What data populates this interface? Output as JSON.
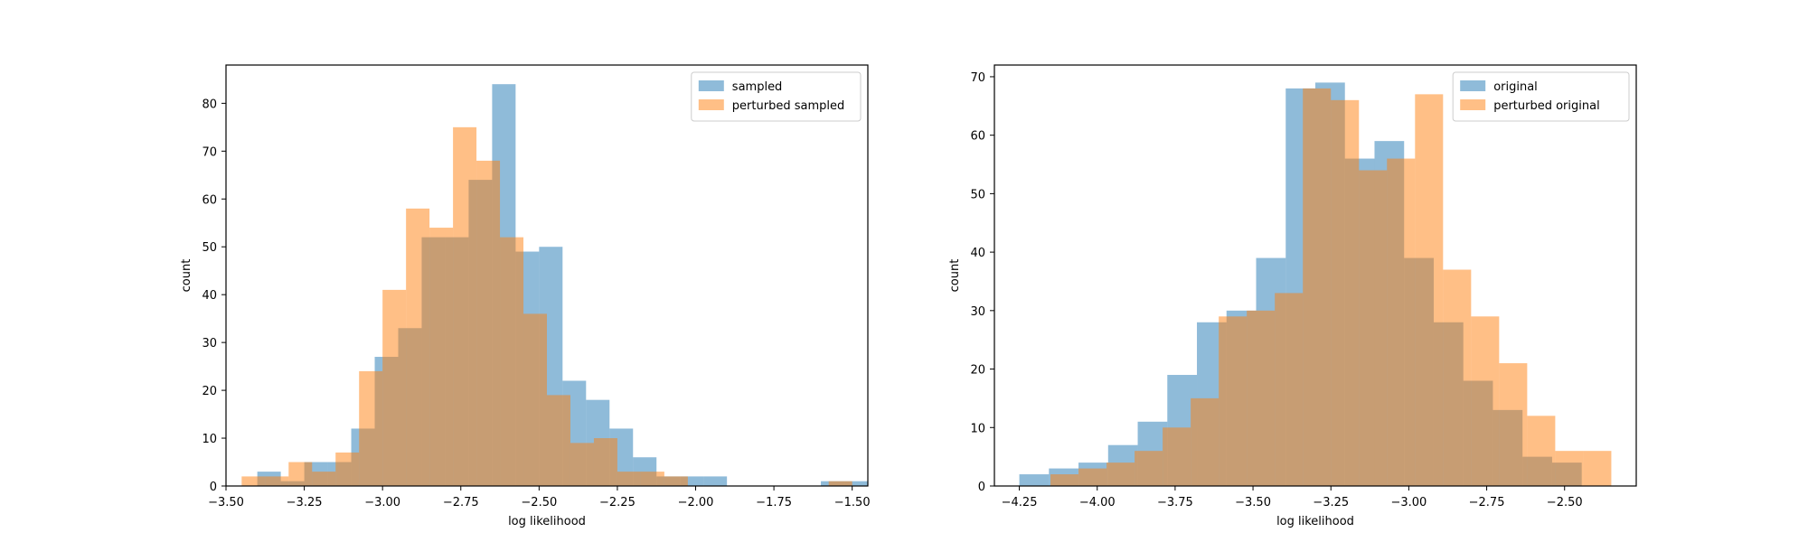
{
  "chart_data": [
    {
      "type": "bar",
      "subtype": "histogram",
      "xlabel": "log likelihood",
      "ylabel": "count",
      "xlim": [
        -3.5,
        -1.45
      ],
      "ylim": [
        0,
        88
      ],
      "xticks": [
        -3.5,
        -3.25,
        -3.0,
        -2.75,
        -2.5,
        -2.25,
        -2.0,
        -1.75,
        -1.5
      ],
      "xtick_labels": [
        "−3.50",
        "−3.25",
        "−3.00",
        "−2.75",
        "−2.50",
        "−2.25",
        "−2.00",
        "−1.75",
        "−1.50"
      ],
      "yticks": [
        0,
        10,
        20,
        30,
        40,
        50,
        60,
        70,
        80
      ],
      "ytick_labels": [
        "0",
        "10",
        "20",
        "30",
        "40",
        "50",
        "60",
        "70",
        "80"
      ],
      "grid": false,
      "legend_position": "top-right",
      "series": [
        {
          "name": "sampled",
          "color": "#1f77b4",
          "opacity": 0.5,
          "bin_edges": [
            -3.4,
            -3.325,
            -3.25,
            -3.175,
            -3.1,
            -3.025,
            -2.95,
            -2.875,
            -2.8,
            -2.725,
            -2.65,
            -2.575,
            -2.5,
            -2.425,
            -2.35,
            -2.275,
            -2.2,
            -2.125,
            -2.05,
            -1.975,
            -1.9,
            -1.825,
            -1.75,
            -1.675,
            -1.6,
            -1.525,
            -1.45
          ],
          "values": [
            3,
            1,
            5,
            5,
            12,
            27,
            33,
            52,
            52,
            64,
            84,
            49,
            50,
            22,
            18,
            12,
            6,
            2,
            2,
            2,
            0,
            0,
            0,
            0,
            1,
            1
          ]
        },
        {
          "name": "perturbed sampled",
          "color": "#ff7f0e",
          "opacity": 0.5,
          "bin_edges": [
            -3.45,
            -3.375,
            -3.3,
            -3.225,
            -3.15,
            -3.075,
            -3.0,
            -2.925,
            -2.85,
            -2.775,
            -2.7,
            -2.625,
            -2.55,
            -2.475,
            -2.4,
            -2.325,
            -2.25,
            -2.175,
            -2.1,
            -2.025,
            -1.95,
            -1.875,
            -1.8,
            -1.725,
            -1.65,
            -1.575,
            -1.5
          ],
          "values": [
            2,
            2,
            5,
            3,
            7,
            24,
            41,
            58,
            54,
            75,
            68,
            52,
            36,
            19,
            9,
            10,
            3,
            3,
            2,
            0,
            0,
            0,
            0,
            0,
            0,
            1
          ]
        }
      ]
    },
    {
      "type": "bar",
      "subtype": "histogram",
      "xlabel": "log likelihood",
      "ylabel": "count",
      "xlim": [
        -4.33,
        -2.27
      ],
      "ylim": [
        0,
        72
      ],
      "xticks": [
        -4.25,
        -4.0,
        -3.75,
        -3.5,
        -3.25,
        -3.0,
        -2.75,
        -2.5
      ],
      "xtick_labels": [
        "−4.25",
        "−4.00",
        "−3.75",
        "−3.50",
        "−3.25",
        "−3.00",
        "−2.75",
        "−2.50"
      ],
      "yticks": [
        0,
        10,
        20,
        30,
        40,
        50,
        60,
        70
      ],
      "ytick_labels": [
        "0",
        "10",
        "20",
        "30",
        "40",
        "50",
        "60",
        "70"
      ],
      "grid": false,
      "legend_position": "top-right",
      "series": [
        {
          "name": "original",
          "color": "#1f77b4",
          "opacity": 0.5,
          "bin_edges": [
            -4.25,
            -4.155,
            -4.06,
            -3.965,
            -3.87,
            -3.775,
            -3.68,
            -3.585,
            -3.49,
            -3.395,
            -3.3,
            -3.205,
            -3.11,
            -3.015,
            -2.92,
            -2.825,
            -2.73,
            -2.635,
            -2.54,
            -2.445,
            -2.35
          ],
          "values": [
            2,
            3,
            4,
            7,
            11,
            19,
            28,
            30,
            39,
            68,
            69,
            56,
            59,
            39,
            28,
            18,
            13,
            5,
            4,
            0
          ]
        },
        {
          "name": "perturbed original",
          "color": "#ff7f0e",
          "opacity": 0.5,
          "bin_edges": [
            -4.15,
            -4.06,
            -3.97,
            -3.88,
            -3.79,
            -3.7,
            -3.61,
            -3.52,
            -3.43,
            -3.34,
            -3.25,
            -3.16,
            -3.07,
            -2.98,
            -2.89,
            -2.8,
            -2.71,
            -2.62,
            -2.53,
            -2.44,
            -2.35
          ],
          "values": [
            2,
            3,
            4,
            6,
            10,
            15,
            29,
            30,
            33,
            68,
            66,
            54,
            56,
            67,
            37,
            29,
            21,
            12,
            6,
            6
          ]
        }
      ]
    }
  ]
}
